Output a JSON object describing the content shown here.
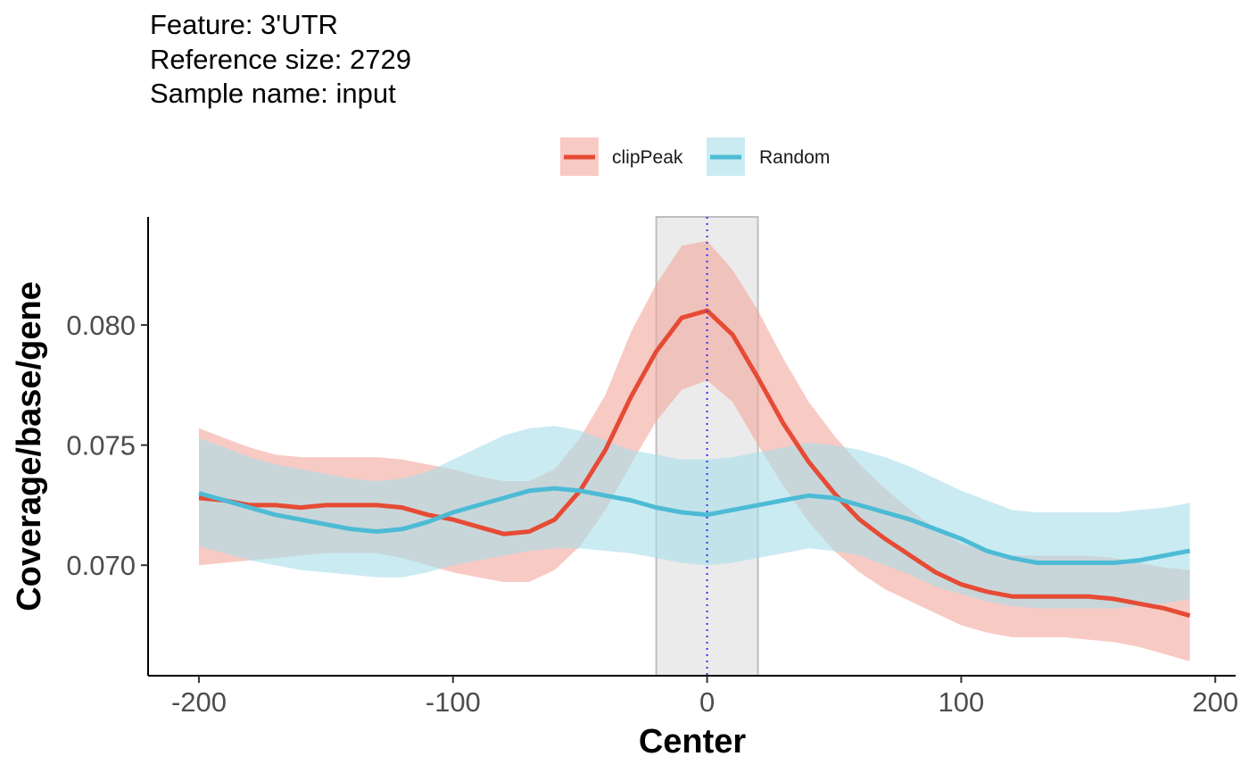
{
  "chart_data": {
    "type": "line",
    "title_lines": [
      "Feature: 3'UTR",
      "Reference size: 2729",
      "Sample name: input"
    ],
    "xlabel": "Center",
    "ylabel": "Coverage/base/gene",
    "xlim": [
      -220,
      208
    ],
    "ylim": [
      0.0654,
      0.0845
    ],
    "x_ticks": [
      -200,
      -100,
      0,
      100,
      200
    ],
    "x_tick_labels": [
      "-200",
      "-100",
      "0",
      "100",
      "200"
    ],
    "y_ticks": [
      0.07,
      0.075,
      0.08
    ],
    "y_tick_labels": [
      "0.070",
      "0.075",
      "0.080"
    ],
    "grid": false,
    "legend_position": "top",
    "highlight_region": {
      "x_start": -20,
      "x_end": 20,
      "fill": "#ebebeb",
      "stroke": "#bebebe"
    },
    "center_line": {
      "x": 0,
      "color": "#3333ff",
      "style": "dotted"
    },
    "x": [
      -200,
      -190,
      -180,
      -170,
      -160,
      -150,
      -140,
      -130,
      -120,
      -110,
      -100,
      -90,
      -80,
      -70,
      -60,
      -50,
      -40,
      -30,
      -20,
      -10,
      0,
      10,
      20,
      30,
      40,
      50,
      60,
      70,
      80,
      90,
      100,
      110,
      120,
      130,
      140,
      150,
      160,
      170,
      180,
      190
    ],
    "series": [
      {
        "name": "clipPeak",
        "color": "#e64b35",
        "band_color": "#f4a79c",
        "values": [
          0.0728,
          0.0727,
          0.0725,
          0.0725,
          0.0724,
          0.0725,
          0.0725,
          0.0725,
          0.0724,
          0.0721,
          0.0719,
          0.0716,
          0.0713,
          0.0714,
          0.0719,
          0.0731,
          0.0748,
          0.077,
          0.0789,
          0.0803,
          0.0806,
          0.0796,
          0.0778,
          0.0759,
          0.0743,
          0.073,
          0.0719,
          0.0711,
          0.0704,
          0.0697,
          0.0692,
          0.0689,
          0.0687,
          0.0687,
          0.0687,
          0.0687,
          0.0686,
          0.0684,
          0.0682,
          0.0679
        ],
        "lower": [
          0.07,
          0.0701,
          0.0702,
          0.0703,
          0.0704,
          0.0705,
          0.0705,
          0.0705,
          0.0703,
          0.07,
          0.0697,
          0.0695,
          0.0693,
          0.0693,
          0.0698,
          0.0708,
          0.0723,
          0.0742,
          0.076,
          0.0773,
          0.0777,
          0.0768,
          0.075,
          0.0733,
          0.0718,
          0.0706,
          0.0697,
          0.069,
          0.0685,
          0.068,
          0.0675,
          0.0672,
          0.067,
          0.067,
          0.067,
          0.0669,
          0.0668,
          0.0666,
          0.0663,
          0.066
        ],
        "upper": [
          0.0757,
          0.0753,
          0.0749,
          0.0746,
          0.0745,
          0.0745,
          0.0745,
          0.0745,
          0.0744,
          0.0742,
          0.074,
          0.0737,
          0.0735,
          0.0735,
          0.074,
          0.0753,
          0.0771,
          0.0797,
          0.0817,
          0.0833,
          0.0835,
          0.0823,
          0.0806,
          0.0786,
          0.0768,
          0.0754,
          0.0742,
          0.0732,
          0.0723,
          0.0715,
          0.0709,
          0.0706,
          0.0704,
          0.0704,
          0.0704,
          0.0704,
          0.0703,
          0.0701,
          0.0699,
          0.0698
        ]
      },
      {
        "name": "Random",
        "color": "#4dbbd5",
        "band_color": "#a9dde9",
        "values": [
          0.073,
          0.0727,
          0.0724,
          0.0721,
          0.0719,
          0.0717,
          0.0715,
          0.0714,
          0.0715,
          0.0718,
          0.0722,
          0.0725,
          0.0728,
          0.0731,
          0.0732,
          0.0731,
          0.0729,
          0.0727,
          0.0724,
          0.0722,
          0.0721,
          0.0723,
          0.0725,
          0.0727,
          0.0729,
          0.0728,
          0.0725,
          0.0722,
          0.0719,
          0.0715,
          0.0711,
          0.0706,
          0.0703,
          0.0701,
          0.0701,
          0.0701,
          0.0701,
          0.0702,
          0.0704,
          0.0706
        ],
        "lower": [
          0.0708,
          0.0705,
          0.0702,
          0.07,
          0.0698,
          0.0697,
          0.0696,
          0.0695,
          0.0695,
          0.0697,
          0.07,
          0.0702,
          0.0704,
          0.0706,
          0.0707,
          0.0707,
          0.0706,
          0.0705,
          0.0703,
          0.0701,
          0.07,
          0.0701,
          0.0703,
          0.0705,
          0.0707,
          0.0706,
          0.0704,
          0.07,
          0.0696,
          0.0691,
          0.0688,
          0.0685,
          0.0683,
          0.0682,
          0.0682,
          0.0682,
          0.0682,
          0.0683,
          0.0684,
          0.0686
        ],
        "upper": [
          0.0753,
          0.0749,
          0.0745,
          0.0742,
          0.074,
          0.0738,
          0.0736,
          0.0735,
          0.0736,
          0.0739,
          0.0744,
          0.0749,
          0.0754,
          0.0757,
          0.0758,
          0.0756,
          0.0752,
          0.0748,
          0.0746,
          0.0744,
          0.0744,
          0.0745,
          0.0747,
          0.0749,
          0.0751,
          0.075,
          0.0748,
          0.0745,
          0.0741,
          0.0736,
          0.0731,
          0.0727,
          0.0723,
          0.0722,
          0.0722,
          0.0722,
          0.0722,
          0.0723,
          0.0724,
          0.0726
        ]
      }
    ]
  }
}
